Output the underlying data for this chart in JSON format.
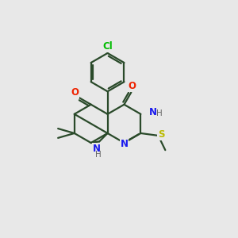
{
  "background_color": "#e8e8e8",
  "bond_color": "#2a4a2a",
  "bond_width": 1.6,
  "figsize": [
    3.0,
    3.0
  ],
  "dpi": 100,
  "atoms": {
    "Cl": {
      "color": "#00bb00",
      "fontsize": 8.5,
      "fontweight": "bold"
    },
    "O": {
      "color": "#ee2200",
      "fontsize": 8.5,
      "fontweight": "bold"
    },
    "N": {
      "color": "#1a1aee",
      "fontsize": 8.5,
      "fontweight": "bold"
    },
    "S": {
      "color": "#bbbb00",
      "fontsize": 8.5,
      "fontweight": "bold"
    },
    "H": {
      "color": "#666666",
      "fontsize": 7.5,
      "fontweight": "normal"
    }
  }
}
